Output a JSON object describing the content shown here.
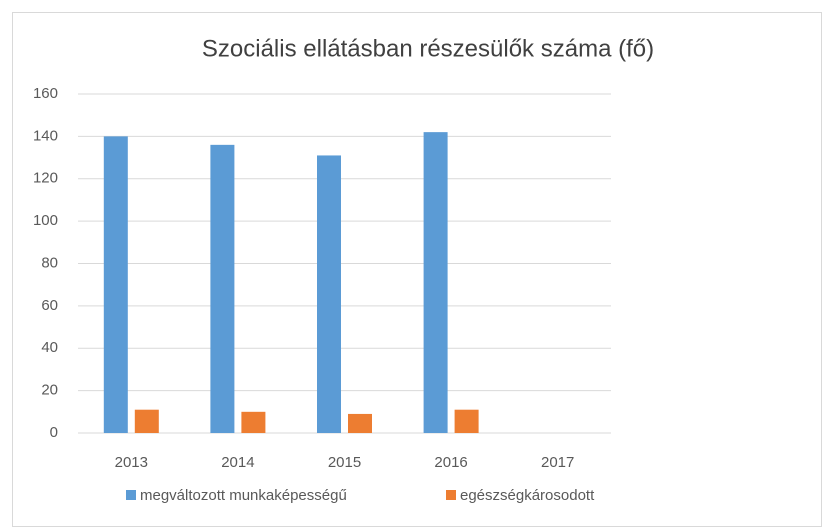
{
  "chart_data": {
    "type": "bar",
    "title": "Szociális ellátásban részesülők száma (fő)",
    "categories": [
      "2013",
      "2014",
      "2015",
      "2016",
      "2017"
    ],
    "series": [
      {
        "name": "megváltozott munkaképességű",
        "color": "#5b9bd5",
        "values": [
          140,
          136,
          131,
          142,
          null
        ]
      },
      {
        "name": "egészségkárosodott",
        "color": "#ed7d31",
        "values": [
          11,
          10,
          9,
          11,
          null
        ]
      }
    ],
    "ylim": [
      0,
      160
    ],
    "yticks": [
      0,
      20,
      40,
      60,
      80,
      100,
      120,
      140,
      160
    ],
    "grid": true
  }
}
